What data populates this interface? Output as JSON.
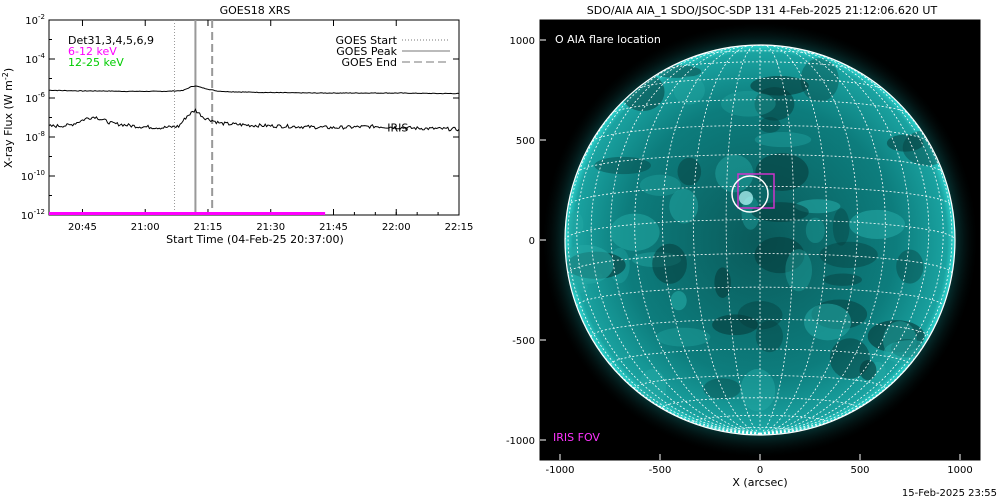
{
  "footer_timestamp": "15-Feb-2025 23:55",
  "chart_data": [
    {
      "type": "line",
      "title": "GOES18 XRS",
      "xlabel": "Start Time (04-Feb-25 20:37:00)",
      "ylabel": "X-ray Flux (W m",
      "ylabel_sup": "-2",
      "ylabel_close": ")",
      "y_scale": "log",
      "ylim": [
        1e-12,
        0.01
      ],
      "xlim": [
        "20:37",
        "22:15"
      ],
      "x_ticks": [
        "20:45",
        "21:00",
        "21:15",
        "21:30",
        "21:45",
        "22:00",
        "22:15"
      ],
      "y_ticks": [
        {
          "exp": "-2"
        },
        {
          "exp": "-4"
        },
        {
          "exp": "-6"
        },
        {
          "exp": "-8"
        },
        {
          "exp": "-10"
        },
        {
          "exp": "-12"
        }
      ],
      "channels_text": "Det31,3,4,5,6,9",
      "channel_labels": [
        {
          "text": "6-12 keV",
          "color": "#ff00ff"
        },
        {
          "text": "12-25 keV",
          "color": "#00cc00"
        }
      ],
      "legend": {
        "placement": "top-right",
        "entries": [
          {
            "label": "GOES Start",
            "style": "dotted"
          },
          {
            "label": "GOES Peak",
            "style": "solid"
          },
          {
            "label": "GOES End",
            "style": "dashed"
          }
        ]
      },
      "event_times": {
        "start": "21:07",
        "peak": "21:12",
        "end": "21:16"
      },
      "iris_label": "IRIS",
      "iris_bar": {
        "start": "20:37",
        "end": "21:43",
        "level": 1.2e-12,
        "color": "#ff00ff"
      },
      "series": [
        {
          "color": "#000000",
          "x": [
            "20:37",
            "20:45",
            "20:50",
            "20:55",
            "21:00",
            "21:05",
            "21:09",
            "21:11",
            "21:12",
            "21:14",
            "21:17",
            "21:20",
            "21:30",
            "21:40",
            "21:50",
            "22:00",
            "22:10",
            "22:15"
          ],
          "values": [
            2.5e-06,
            2.3e-06,
            2.3e-06,
            2.2e-06,
            2.2e-06,
            2.2e-06,
            2.4e-06,
            3.8e-06,
            4.2e-06,
            3.2e-06,
            2.3e-06,
            2.1e-06,
            1.9e-06,
            1.8e-06,
            1.8e-06,
            1.8e-06,
            1.7e-06,
            1.7e-06
          ]
        },
        {
          "color": "#000000",
          "x": [
            "20:37",
            "20:42",
            "20:46",
            "20:48",
            "20:52",
            "20:58",
            "21:04",
            "21:08",
            "21:10",
            "21:12",
            "21:14",
            "21:18",
            "21:25",
            "21:35",
            "21:45",
            "21:55",
            "22:05",
            "22:15"
          ],
          "values": [
            3.5e-08,
            4e-08,
            9e-08,
            1.1e-07,
            5e-08,
            3.5e-08,
            3e-08,
            3.5e-08,
            1.2e-07,
            2.4e-07,
            1e-07,
            5e-08,
            4e-08,
            3.5e-08,
            3e-08,
            3.5e-08,
            2.8e-08,
            2.5e-08
          ]
        }
      ]
    },
    {
      "type": "heatmap",
      "title": "SDO/AIA AIA_1 SDO/JSOC-SDP 131  4-Feb-2025 21:12:06.620 UT",
      "xlabel": "X (arcsec)",
      "xlim": [
        -1100,
        1100
      ],
      "ylim": [
        -1100,
        1100
      ],
      "x_ticks": [
        "-1000",
        "-500",
        "0",
        "500",
        "1000"
      ],
      "y_ticks": [
        "1000",
        "500",
        "0",
        "-500",
        "-1000"
      ],
      "flare_location": {
        "x": -50,
        "y": 230
      },
      "iris_fov": {
        "x0": -110,
        "x1": 70,
        "y0": 160,
        "y1": 330
      },
      "legend_text": "O AIA flare location",
      "iris_fov_label": "IRIS FOV",
      "colors": {
        "disk": "#0c8c8c",
        "limb": "#2fd6d0",
        "grid": "#ffffff",
        "iris": "#cc33cc"
      }
    }
  ]
}
